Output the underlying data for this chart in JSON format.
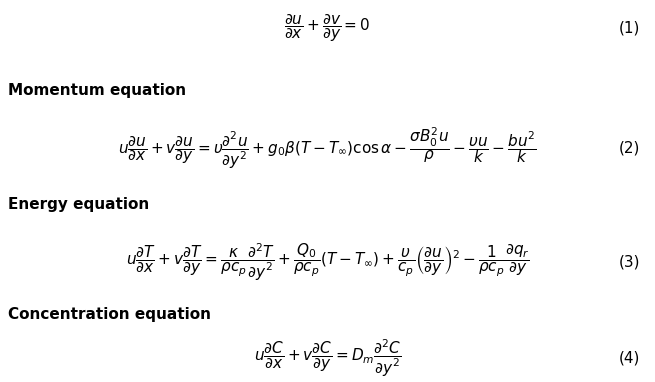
{
  "background_color": "#ffffff",
  "label1": "Momentum equation",
  "label2": "Energy equation",
  "label3": "Concentration equation",
  "num1": "(1)",
  "num2": "(2)",
  "num3": "(3)",
  "num4": "(4)",
  "label_fontsize": 11,
  "eq_fontsize": 11,
  "num_fontsize": 11
}
